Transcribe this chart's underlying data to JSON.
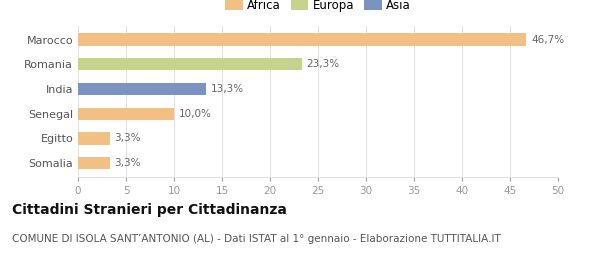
{
  "categories": [
    "Marocco",
    "Romania",
    "India",
    "Senegal",
    "Egitto",
    "Somalia"
  ],
  "values": [
    46.7,
    23.3,
    13.3,
    10.0,
    3.3,
    3.3
  ],
  "labels": [
    "46,7%",
    "23,3%",
    "13,3%",
    "10,0%",
    "3,3%",
    "3,3%"
  ],
  "colors": [
    "#f2c084",
    "#c5d48c",
    "#7b93c0",
    "#f2c084",
    "#f2c084",
    "#f2c084"
  ],
  "legend_items": [
    {
      "label": "Africa",
      "color": "#f2c084"
    },
    {
      "label": "Europa",
      "color": "#c5d48c"
    },
    {
      "label": "Asia",
      "color": "#7b93c0"
    }
  ],
  "xlim": [
    0,
    50
  ],
  "xticks": [
    0,
    5,
    10,
    15,
    20,
    25,
    30,
    35,
    40,
    45,
    50
  ],
  "title": "Cittadini Stranieri per Cittadinanza",
  "subtitle": "COMUNE DI ISOLA SANT’ANTONIO (AL) - Dati ISTAT al 1° gennaio - Elaborazione TUTTITALIA.IT",
  "bg_color": "#ffffff",
  "bar_height": 0.5,
  "title_fontsize": 10,
  "subtitle_fontsize": 7.5,
  "label_fontsize": 7.5,
  "tick_fontsize": 7.5,
  "ytick_fontsize": 8,
  "grid_color": "#e0e0e0",
  "legend_fontsize": 8.5
}
